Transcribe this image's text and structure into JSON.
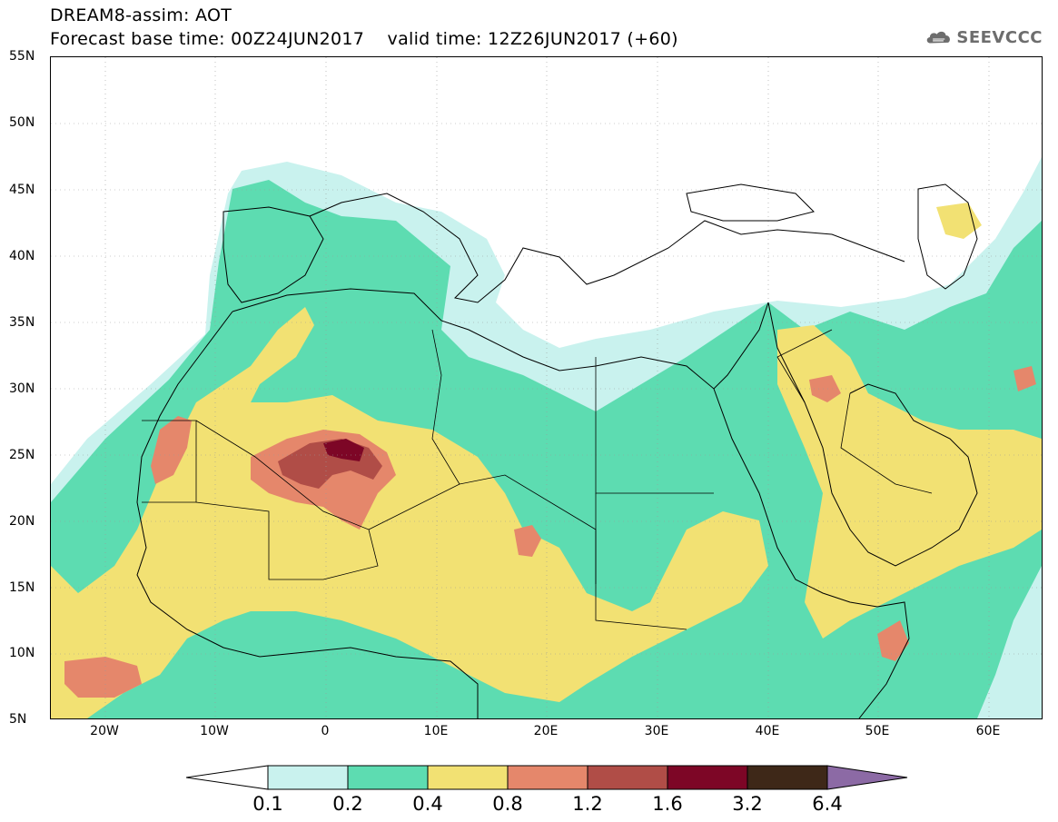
{
  "header": {
    "line1": "DREAM8-assim: AOT",
    "line2": "Forecast base time: 00Z24JUN2017    valid time: 12Z26JUN2017 (+60)"
  },
  "logo": {
    "text": "SEEVCCC",
    "icon": "cloud-icon"
  },
  "map": {
    "lat_labels": [
      "55N",
      "50N",
      "45N",
      "40N",
      "35N",
      "30N",
      "25N",
      "20N",
      "15N",
      "10N",
      "5N"
    ],
    "lon_labels": [
      "20W",
      "10W",
      "0",
      "10E",
      "20E",
      "30E",
      "40E",
      "50E",
      "60E"
    ],
    "colors": {
      "c01": "#c9f2ee",
      "c02": "#5ddcb1",
      "c04": "#f2e173",
      "c08": "#e5876b",
      "c12": "#b04d47",
      "c16": "#7d0626",
      "c32": "#3e2818",
      "c64": "#8c6aa5"
    }
  },
  "colorbar": {
    "labels": [
      "0.1",
      "0.2",
      "0.4",
      "0.8",
      "1.2",
      "1.6",
      "3.2",
      "6.4"
    ],
    "colors": [
      "#c9f2ee",
      "#5ddcb1",
      "#f2e173",
      "#e5876b",
      "#b04d47",
      "#7d0626",
      "#3e2818"
    ],
    "over_color": "#8c6aa5",
    "under_color": "#ffffff"
  }
}
